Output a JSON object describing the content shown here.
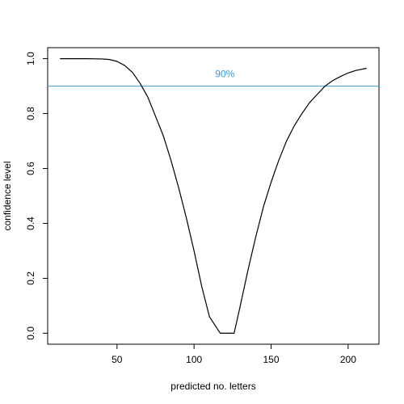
{
  "chart_data": {
    "type": "line",
    "xlabel": "predicted no. letters",
    "ylabel": "confidence level",
    "xlim": [
      5,
      220
    ],
    "ylim": [
      -0.04,
      1.04
    ],
    "x_ticks": [
      50,
      100,
      150,
      200
    ],
    "x_tick_labels": [
      "50",
      "100",
      "150",
      "200"
    ],
    "y_ticks": [
      0.0,
      0.2,
      0.4,
      0.6,
      0.8,
      1.0
    ],
    "y_tick_labels": [
      "0.0",
      "0.2",
      "0.4",
      "0.6",
      "0.8",
      "1.0"
    ],
    "series": [
      {
        "color": "#000000",
        "x": [
          13,
          20,
          30,
          40,
          45,
          50,
          55,
          60,
          65,
          70,
          75,
          80,
          85,
          90,
          95,
          100,
          105,
          110,
          117,
          120,
          123,
          126,
          130,
          135,
          140,
          145,
          150,
          155,
          160,
          165,
          170,
          175,
          180,
          185,
          190,
          195,
          200,
          205,
          212
        ],
        "y": [
          1.0,
          1.0,
          1.0,
          0.999,
          0.997,
          0.99,
          0.975,
          0.95,
          0.91,
          0.86,
          0.79,
          0.72,
          0.63,
          0.53,
          0.42,
          0.3,
          0.17,
          0.06,
          0.0,
          0.0,
          0.0,
          0.0,
          0.1,
          0.23,
          0.35,
          0.46,
          0.55,
          0.63,
          0.7,
          0.755,
          0.8,
          0.84,
          0.87,
          0.9,
          0.92,
          0.935,
          0.948,
          0.957,
          0.965
        ]
      }
    ],
    "reference_line": {
      "y": 0.9,
      "label": "90%",
      "label_x": 120,
      "color": "#3a9ad9"
    },
    "grid": false,
    "legend": "none"
  }
}
